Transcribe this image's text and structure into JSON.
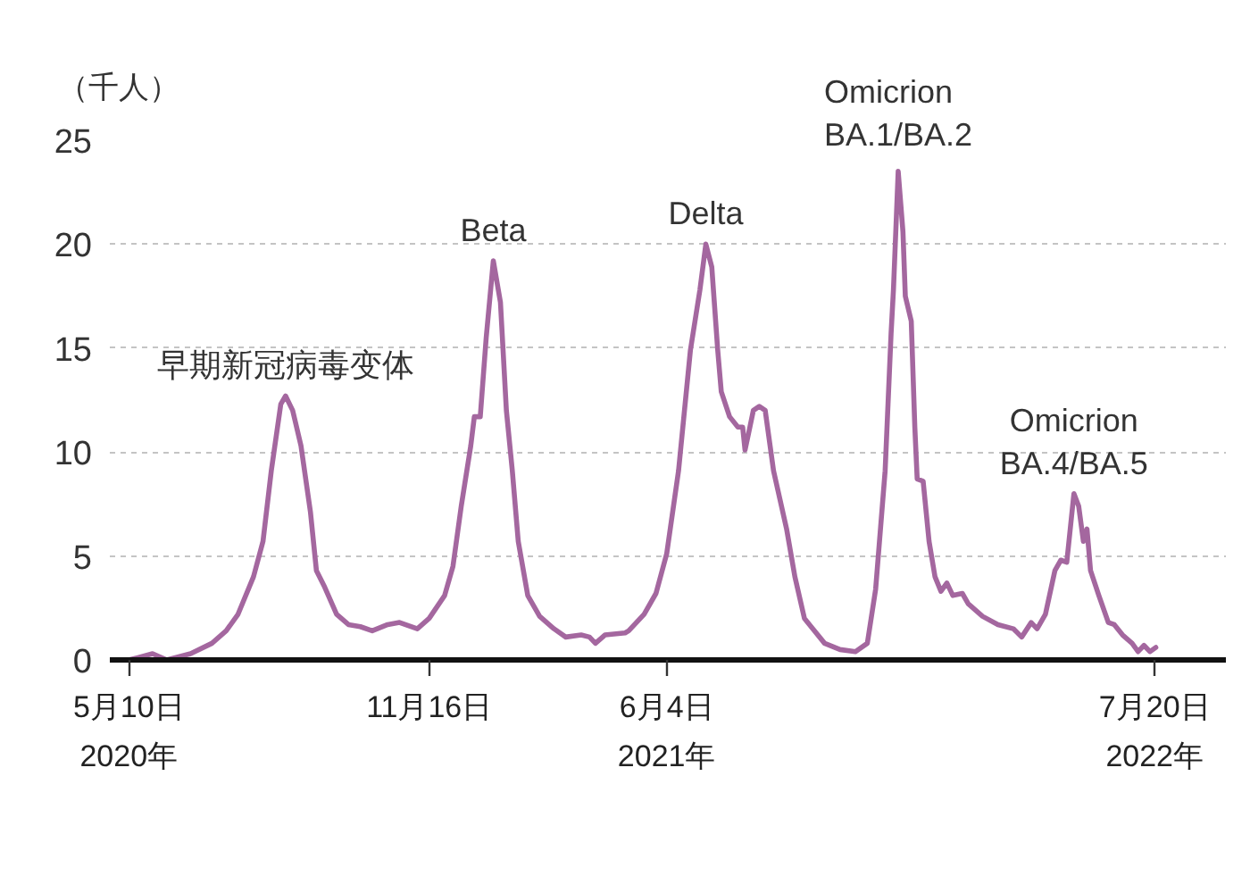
{
  "chart_data": {
    "type": "line",
    "ylabel": "（千人）",
    "x": [
      "2020-03-08",
      "2020-03-15",
      "2020-03-28",
      "2020-04-09",
      "2020-04-29",
      "2020-05-17",
      "2020-05-29",
      "2020-06-08",
      "2020-06-21",
      "2020-06-29",
      "2020-07-06",
      "2020-07-14",
      "2020-07-18",
      "2020-07-24",
      "2020-07-31",
      "2020-08-08",
      "2020-08-13",
      "2020-08-20",
      "2020-08-30",
      "2020-09-09",
      "2020-09-19",
      "2020-09-29",
      "2020-10-12",
      "2020-10-22",
      "2020-11-06",
      "2020-11-16",
      "2020-11-29",
      "2020-12-06",
      "2020-12-13",
      "2020-12-21",
      "2020-12-24",
      "2020-12-29",
      "2021-01-03",
      "2021-01-09",
      "2021-01-15",
      "2021-01-20",
      "2021-01-25",
      "2021-01-30",
      "2021-02-07",
      "2021-02-17",
      "2021-03-01",
      "2021-03-11",
      "2021-03-24",
      "2021-03-31",
      "2021-04-05",
      "2021-04-13",
      "2021-04-30",
      "2021-05-03",
      "2021-05-16",
      "2021-05-26",
      "2021-06-04",
      "2021-06-14",
      "2021-06-24",
      "2021-07-02",
      "2021-07-07",
      "2021-07-12",
      "2021-07-17",
      "2021-07-20",
      "2021-07-27",
      "2021-08-03",
      "2021-08-07",
      "2021-08-09",
      "2021-08-12",
      "2021-08-16",
      "2021-08-21",
      "2021-08-26",
      "2021-09-02",
      "2021-09-13",
      "2021-09-20",
      "2021-09-28",
      "2021-10-05",
      "2021-10-15",
      "2021-10-28",
      "2021-11-10",
      "2021-11-20",
      "2021-11-27",
      "2021-12-05",
      "2021-12-10",
      "2021-12-12",
      "2021-12-16",
      "2021-12-20",
      "2021-12-22",
      "2021-12-27",
      "2021-12-30",
      "2022-01-01",
      "2022-01-06",
      "2022-01-11",
      "2022-01-16",
      "2022-01-21",
      "2022-01-26",
      "2022-01-31",
      "2022-02-08",
      "2022-02-13",
      "2022-02-25",
      "2022-03-10",
      "2022-03-23",
      "2022-03-30",
      "2022-04-07",
      "2022-04-12",
      "2022-04-19",
      "2022-04-27",
      "2022-05-02",
      "2022-05-07",
      "2022-05-13",
      "2022-05-17",
      "2022-05-21",
      "2022-05-24",
      "2022-05-27",
      "2022-06-03",
      "2022-06-11",
      "2022-06-16",
      "2022-06-23",
      "2022-07-01",
      "2022-07-06",
      "2022-07-11",
      "2022-07-16",
      "2022-07-21"
    ],
    "values": [
      0,
      0.1,
      0.3,
      0,
      0.3,
      0.8,
      1.4,
      2.2,
      4.0,
      5.7,
      9.1,
      12.3,
      12.7,
      12.0,
      10.3,
      7.1,
      4.3,
      3.5,
      2.2,
      1.7,
      1.6,
      1.4,
      1.7,
      1.8,
      1.5,
      2.0,
      3.1,
      4.5,
      7.4,
      10.3,
      11.7,
      11.7,
      15.5,
      19.2,
      17.2,
      12.0,
      9.1,
      5.7,
      3.1,
      2.1,
      1.5,
      1.1,
      1.2,
      1.1,
      0.8,
      1.2,
      1.3,
      1.4,
      2.2,
      3.2,
      5.1,
      9.1,
      14.9,
      17.8,
      20.0,
      18.9,
      14.9,
      12.9,
      11.7,
      11.2,
      11.2,
      10.1,
      10.9,
      12.0,
      12.2,
      12.0,
      9.1,
      6.3,
      4.0,
      2.0,
      1.5,
      0.8,
      0.5,
      0.4,
      0.8,
      3.4,
      9.1,
      15.7,
      17.8,
      23.5,
      20.6,
      17.5,
      16.3,
      11.2,
      8.7,
      8.6,
      5.7,
      4.0,
      3.3,
      3.7,
      3.1,
      3.2,
      2.7,
      2.1,
      1.7,
      1.5,
      1.1,
      1.8,
      1.5,
      2.2,
      4.3,
      4.8,
      4.7,
      8.0,
      7.4,
      5.7,
      6.3,
      4.3,
      3.1,
      1.8,
      1.7,
      1.2,
      0.8,
      0.4,
      0.7,
      0.4,
      0.6
    ],
    "color": "#a4679f",
    "line_style": "solid",
    "grid": "y",
    "xlim": [
      "2020-02-21",
      "2022-09-18"
    ],
    "xticks": [
      {
        "value": "2020-03-08",
        "label": "5月10日\n2020年"
      },
      {
        "value": "2020-11-16",
        "label": "11月16日"
      },
      {
        "value": "2021-06-04",
        "label": "6月4日\n2021年"
      },
      {
        "value": "2022-07-20",
        "label": "7月20日\n2022年"
      }
    ],
    "ylim": [
      0,
      25
    ],
    "yticks": [
      0,
      5,
      10,
      15,
      20,
      25
    ],
    "annotations": [
      {
        "text": "早期新冠病毒变体",
        "x": "2020-07-18",
        "y": 12.7
      },
      {
        "text": "Beta",
        "x": "2021-01-09",
        "y": 19.2
      },
      {
        "text": "Delta",
        "x": "2021-07-07",
        "y": 20.0
      },
      {
        "text": "Omicrion\nBA.1/BA.2",
        "x": "2021-12-16",
        "y": 23.5
      },
      {
        "text": "Omicrion\nBA.4/BA.5",
        "x": "2022-05-13",
        "y": 8.0
      }
    ]
  }
}
